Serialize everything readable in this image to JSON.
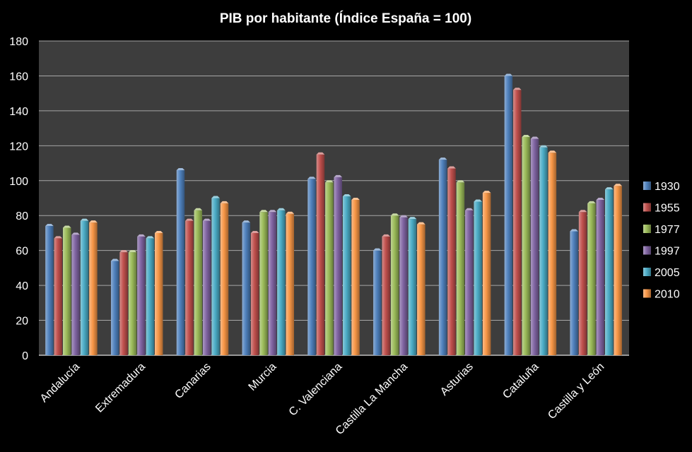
{
  "chart_data": {
    "type": "bar",
    "title": "PIB por habitante (Índice España = 100)",
    "xlabel": "",
    "ylabel": "",
    "ylim": [
      0,
      180
    ],
    "yticks": [
      "0",
      "20",
      "40",
      "60",
      "80",
      "100",
      "120",
      "140",
      "160",
      "180"
    ],
    "grid": true,
    "legend_position": "right",
    "categories": [
      "Andalucía",
      "Extremadura",
      "Canarias",
      "Murcia",
      "C. Valenciana",
      "Castilla La Mancha",
      "Asturias",
      "Cataluña",
      "Castilla y León"
    ],
    "series": [
      {
        "name": "1930",
        "color": "#4f81bd",
        "values": [
          74,
          54,
          106,
          76,
          101,
          60,
          112,
          160,
          71
        ]
      },
      {
        "name": "1955",
        "color": "#c0504d",
        "values": [
          67,
          59,
          77,
          70,
          115,
          68,
          107,
          152,
          82
        ]
      },
      {
        "name": "1977",
        "color": "#9bbb59",
        "values": [
          73,
          59,
          83,
          82,
          99,
          80,
          99,
          125,
          87
        ]
      },
      {
        "name": "1997",
        "color": "#8064a2",
        "values": [
          69,
          68,
          77,
          82,
          102,
          79,
          83,
          124,
          89
        ]
      },
      {
        "name": "2005",
        "color": "#4bacc6",
        "values": [
          77,
          67,
          90,
          83,
          91,
          78,
          88,
          119,
          95
        ]
      },
      {
        "name": "2010",
        "color": "#f79646",
        "values": [
          76,
          70,
          87,
          81,
          89,
          75,
          93,
          116,
          97
        ]
      }
    ]
  }
}
